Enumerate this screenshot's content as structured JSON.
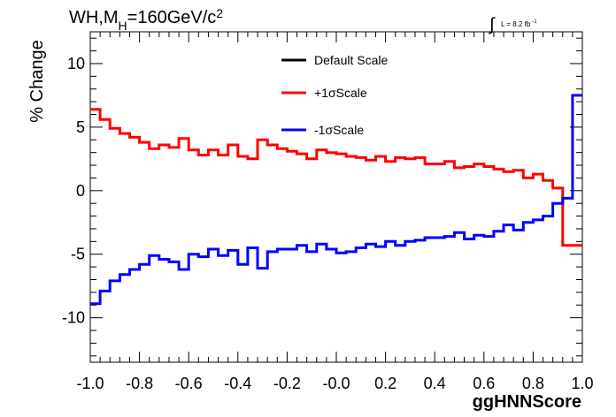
{
  "chart_data": {
    "type": "line",
    "title_parts": {
      "pre": "WH,M",
      "sub": "H",
      "post": "=160GeV/c",
      "sup": "2"
    },
    "lumi_label": "L = 8.2 fb",
    "lumi_sup": "-1",
    "xlabel": "ggHNNScore",
    "ylabel": "% Change",
    "xlim": [
      -1.0,
      1.0
    ],
    "ylim": [
      -13.5,
      12.5
    ],
    "x_ticks": [
      -1.0,
      -0.8,
      -0.6,
      -0.4,
      -0.2,
      0.0,
      0.2,
      0.4,
      0.6,
      0.8,
      1.0
    ],
    "x_tick_labels": [
      "-1.0",
      "-0.8",
      "-0.6",
      "-0.4",
      "-0.2",
      "-0.0",
      "0.2",
      "0.4",
      "0.6",
      "0.8",
      "1.0"
    ],
    "y_ticks": [
      -10,
      -5,
      0,
      5,
      10
    ],
    "y_tick_labels": [
      "-10",
      "-5",
      "0",
      "5",
      "10"
    ],
    "bin_edges": [
      -1.0,
      -0.96,
      -0.92,
      -0.88,
      -0.84,
      -0.8,
      -0.76,
      -0.72,
      -0.68,
      -0.64,
      -0.6,
      -0.56,
      -0.52,
      -0.48,
      -0.44,
      -0.4,
      -0.36,
      -0.32,
      -0.28,
      -0.24,
      -0.2,
      -0.16,
      -0.12,
      -0.08,
      -0.04,
      0.0,
      0.04,
      0.08,
      0.12,
      0.16,
      0.2,
      0.24,
      0.28,
      0.32,
      0.36,
      0.4,
      0.44,
      0.48,
      0.52,
      0.56,
      0.6,
      0.64,
      0.68,
      0.72,
      0.76,
      0.8,
      0.84,
      0.88,
      0.92,
      0.96,
      1.0
    ],
    "series": [
      {
        "name": "Default Scale",
        "color": "#000000",
        "values": []
      },
      {
        "name": "+1σScale",
        "color": "#ff0000",
        "values": [
          6.4,
          5.6,
          4.9,
          4.5,
          4.2,
          3.8,
          3.3,
          3.6,
          3.4,
          4.1,
          3.2,
          2.8,
          3.2,
          2.8,
          3.6,
          2.7,
          2.5,
          4.0,
          3.6,
          3.3,
          3.1,
          2.9,
          2.5,
          3.2,
          3.0,
          2.9,
          2.7,
          2.6,
          2.4,
          2.7,
          2.3,
          2.6,
          2.5,
          2.6,
          2.1,
          2.1,
          2.3,
          1.8,
          1.9,
          2.1,
          1.9,
          1.7,
          1.5,
          1.6,
          1.0,
          1.3,
          0.8,
          0.2,
          -4.3,
          -4.3
        ]
      },
      {
        "name": "-1σScale",
        "color": "#0000ff",
        "values": [
          -8.9,
          -7.9,
          -7.1,
          -6.6,
          -6.2,
          -5.8,
          -5.1,
          -5.4,
          -5.6,
          -6.2,
          -5.0,
          -5.2,
          -4.6,
          -5.1,
          -4.7,
          -5.8,
          -4.5,
          -6.1,
          -4.8,
          -4.6,
          -4.6,
          -4.3,
          -4.8,
          -4.2,
          -4.6,
          -4.9,
          -4.8,
          -4.5,
          -4.2,
          -4.4,
          -4.0,
          -4.3,
          -4.0,
          -3.9,
          -3.7,
          -3.7,
          -3.6,
          -3.3,
          -3.8,
          -3.5,
          -3.6,
          -3.2,
          -2.7,
          -3.1,
          -2.5,
          -2.3,
          -2.0,
          -1.0,
          -0.6,
          7.5
        ]
      }
    ],
    "legend_position": "top-center"
  }
}
